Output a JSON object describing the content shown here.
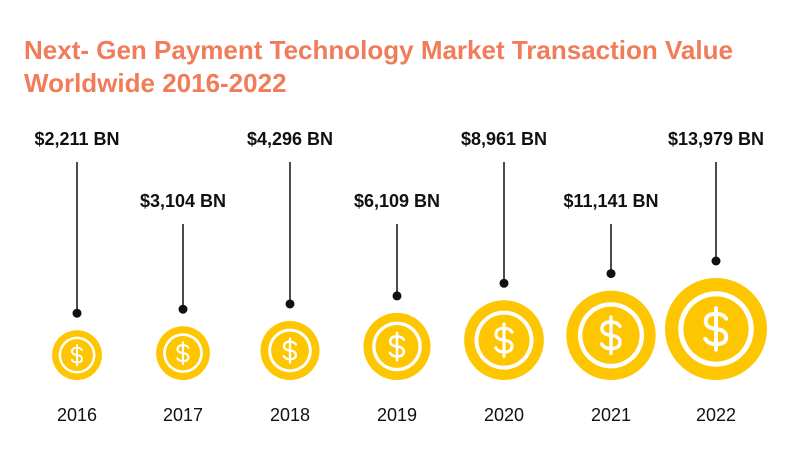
{
  "chart_data": {
    "type": "coin-bubble",
    "title": "Next- Gen Payment Technology Market Transaction Value Worldwide 2016-2022",
    "categories": [
      "2016",
      "2017",
      "2018",
      "2019",
      "2020",
      "2021",
      "2022"
    ],
    "values": [
      2211,
      3104,
      4296,
      6109,
      8961,
      11141,
      13979
    ],
    "value_labels": [
      "$2,211  BN",
      "$3,104  BN",
      "$4,296  BN",
      "$6,109  BN",
      "$8,961 BN",
      "$11,141  BN",
      "$13,979 BN"
    ],
    "color": "#fdc600"
  }
}
